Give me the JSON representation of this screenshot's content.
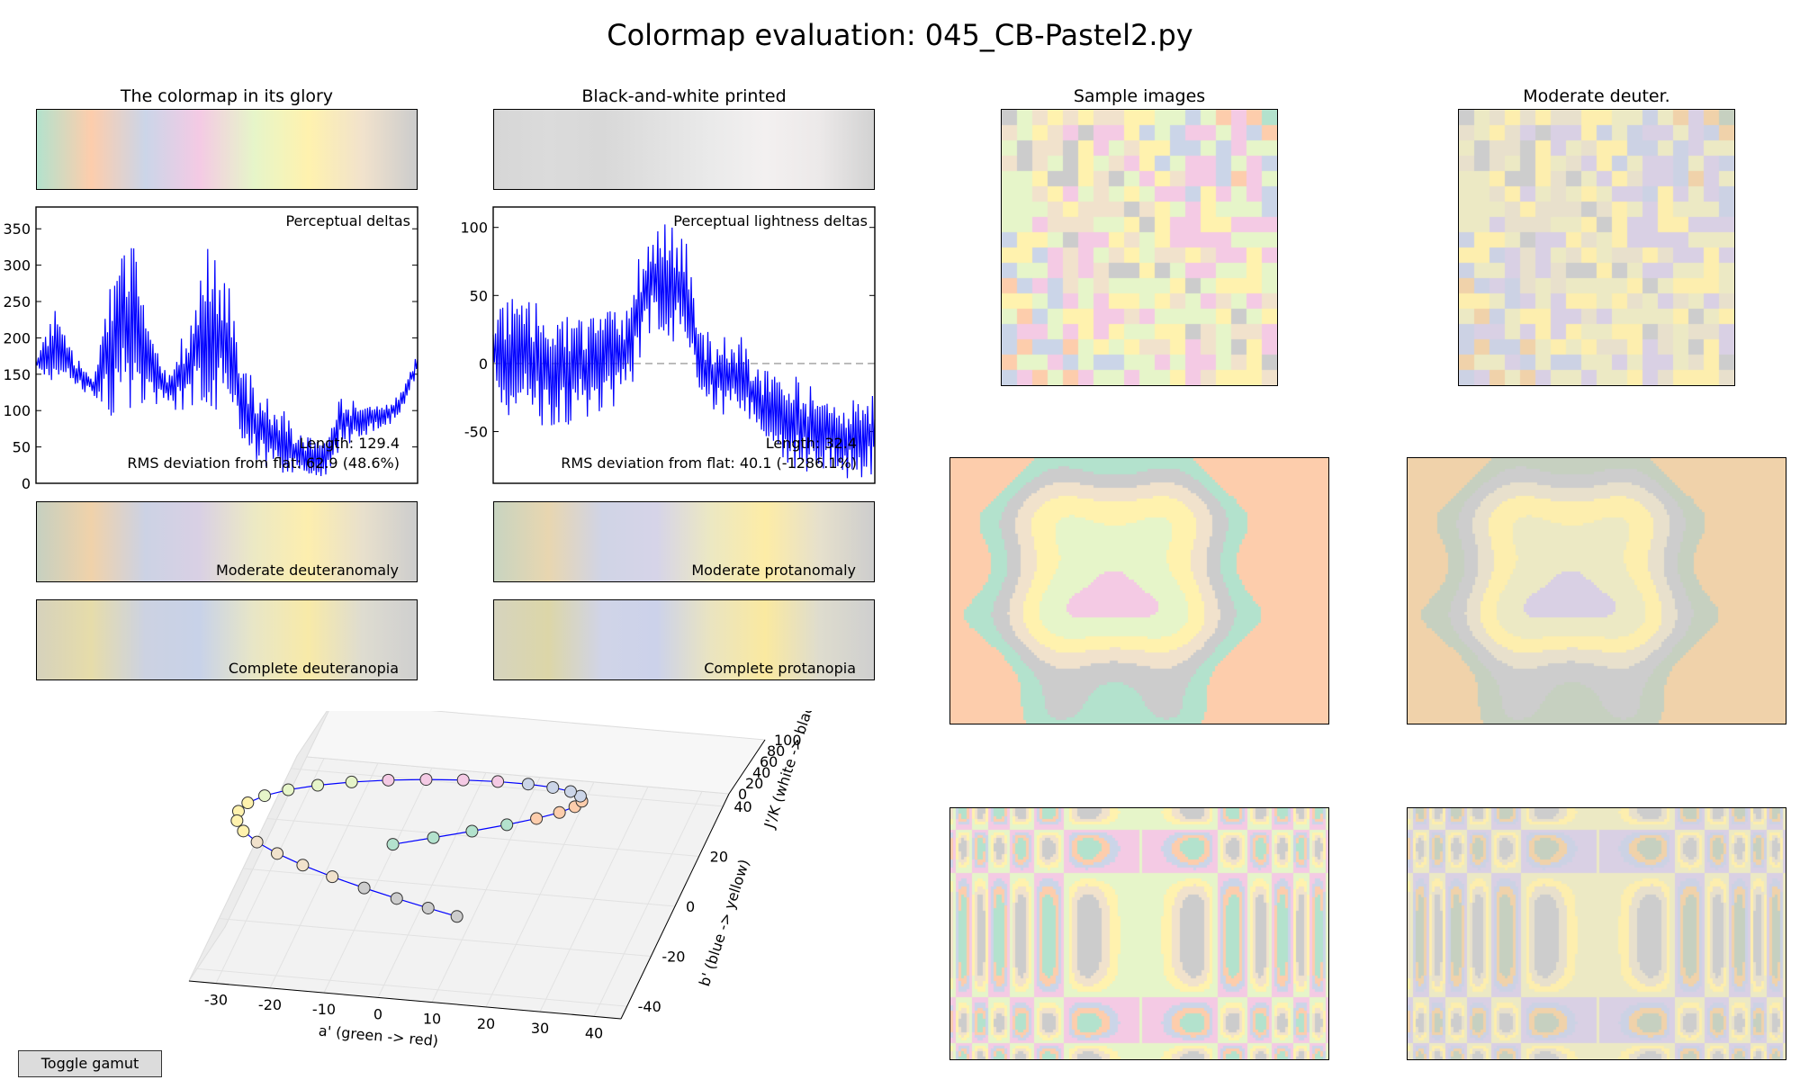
{
  "figure": {
    "title": "Colormap evaluation: 045_CB-Pastel2.py",
    "panel_titles": {
      "glory": "The colormap in its glory",
      "bw": "Black-and-white printed",
      "samples": "Sample images",
      "deuter": "Moderate deuter."
    },
    "strip_labels": {
      "mod_deuteranomaly": "Moderate deuteranomaly",
      "mod_protanomaly": "Moderate protanomaly",
      "complete_deuteranopia": "Complete deuteranopia",
      "complete_protanopia": "Complete protanopia"
    },
    "toggle_button": "Toggle gamut",
    "colors": {
      "line": "#0000ff",
      "pastel2": [
        "#b3e2cd",
        "#fdcdac",
        "#cbd5e8",
        "#f4cae4",
        "#e6f5c9",
        "#fff2ae",
        "#f1e2cc",
        "#cccccc"
      ],
      "bw": [
        "#d6d6d6",
        "#dbdbdb",
        "#d8d8d8",
        "#e1e1e1",
        "#eaeaea",
        "#f3f0f0",
        "#ece9e9",
        "#d2d2d2"
      ],
      "mod_deuter": [
        "#c6d0c0",
        "#f0d2aa",
        "#ccd2e4",
        "#d9d0e4",
        "#ece9c4",
        "#fdeeae",
        "#e8e0cc",
        "#cdcdcd"
      ],
      "mod_protan": [
        "#c8d4c0",
        "#e8d6b0",
        "#d0d4e6",
        "#d6d4e8",
        "#ece8c2",
        "#fdeca6",
        "#e6e0cc",
        "#cdcdcd"
      ],
      "comp_deuter": [
        "#d6d2bc",
        "#e6dcaa",
        "#ccd2e2",
        "#c8d2e8",
        "#e8e6c6",
        "#f8eaa8",
        "#dedcd0",
        "#cfcfcf"
      ],
      "comp_protan": [
        "#d6d4be",
        "#dcd6a8",
        "#d0d4e8",
        "#ccd2ea",
        "#eae4c0",
        "#fae9a0",
        "#dedcce",
        "#cfcfcf"
      ]
    }
  },
  "chart_data": [
    {
      "type": "line",
      "name": "perceptual-deltas",
      "annotation_top": "Perceptual deltas",
      "annotation_length": "Length: 129.4",
      "annotation_rms": "RMS deviation from flat: 62.9 (48.6%)",
      "ylim": [
        0,
        380
      ],
      "yticks": [
        0,
        50,
        100,
        150,
        200,
        250,
        300,
        350
      ],
      "x": [
        0,
        0.05,
        0.1,
        0.15,
        0.2,
        0.25,
        0.3,
        0.35,
        0.4,
        0.45,
        0.5,
        0.55,
        0.6,
        0.65,
        0.7,
        0.75,
        0.8,
        0.85,
        0.9,
        0.95,
        1.0
      ],
      "envelope_high": [
        180,
        240,
        175,
        150,
        300,
        350,
        200,
        150,
        230,
        330,
        290,
        160,
        120,
        100,
        70,
        60,
        120,
        110,
        115,
        120,
        180
      ],
      "envelope_low": [
        150,
        140,
        130,
        120,
        90,
        100,
        110,
        100,
        95,
        100,
        100,
        40,
        20,
        10,
        5,
        0,
        50,
        60,
        70,
        90,
        150
      ]
    },
    {
      "type": "line",
      "name": "perceptual-lightness-deltas",
      "annotation_top": "Perceptual lightness deltas",
      "annotation_length": "Length: 32.4",
      "annotation_rms": "RMS deviation from flat: 40.1 (-1286.1%)",
      "ylim": [
        -88,
        115
      ],
      "yticks": [
        -50,
        0,
        50,
        100
      ],
      "reference_line": 0,
      "x": [
        0,
        0.05,
        0.1,
        0.15,
        0.2,
        0.25,
        0.3,
        0.35,
        0.4,
        0.45,
        0.5,
        0.55,
        0.6,
        0.65,
        0.7,
        0.75,
        0.8,
        0.85,
        0.9,
        0.95,
        1.0
      ],
      "envelope_high": [
        55,
        50,
        45,
        45,
        40,
        35,
        40,
        40,
        100,
        105,
        100,
        25,
        20,
        20,
        0,
        -5,
        -10,
        -20,
        -20,
        -25,
        -20
      ],
      "envelope_low": [
        -30,
        -40,
        -45,
        -50,
        -45,
        -40,
        -35,
        -30,
        15,
        20,
        10,
        -30,
        -40,
        -35,
        -60,
        -70,
        -80,
        -80,
        -85,
        -85,
        -85
      ]
    },
    {
      "type": "scatter",
      "name": "gamut-3d",
      "xlabel": "a' (green -> red)",
      "ylabel": "b' (blue -> yellow)",
      "zlabel": "J'/K (white -> black)",
      "xticks": [
        -30,
        -20,
        -10,
        0,
        10,
        20,
        30,
        40
      ],
      "yticks": [
        -40,
        -20,
        0,
        20,
        40
      ],
      "zticks": [
        0,
        20,
        40,
        60,
        80,
        100
      ],
      "x_range": [
        -35,
        45
      ],
      "y_range": [
        -45,
        45
      ],
      "z_range": [
        0,
        100
      ]
    }
  ]
}
